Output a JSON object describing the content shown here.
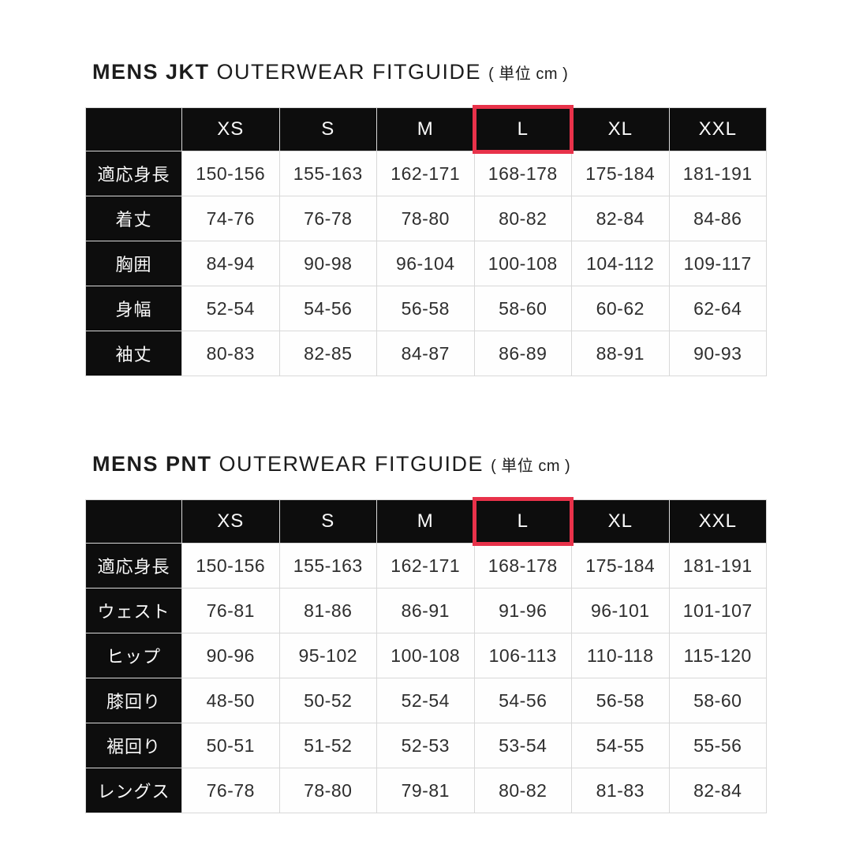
{
  "colors": {
    "highlight_red": "#e8324a",
    "header_black": "#0d0d0d",
    "cell_border_gray": "#d8d8d8",
    "value_text": "#2e2e2e"
  },
  "highlighted_size": "L",
  "tables": [
    {
      "title_bold": "MENS JKT",
      "title_main": "OUTERWEAR FITGUIDE",
      "title_unit": "( 単位 cm )",
      "sizes": [
        "XS",
        "S",
        "M",
        "L",
        "XL",
        "XXL"
      ],
      "rows": [
        {
          "label": "適応身長",
          "values": [
            "150-156",
            "155-163",
            "162-171",
            "168-178",
            "175-184",
            "181-191"
          ]
        },
        {
          "label": "着丈",
          "values": [
            "74-76",
            "76-78",
            "78-80",
            "80-82",
            "82-84",
            "84-86"
          ]
        },
        {
          "label": "胸囲",
          "values": [
            "84-94",
            "90-98",
            "96-104",
            "100-108",
            "104-112",
            "109-117"
          ]
        },
        {
          "label": "身幅",
          "values": [
            "52-54",
            "54-56",
            "56-58",
            "58-60",
            "60-62",
            "62-64"
          ]
        },
        {
          "label": "袖丈",
          "values": [
            "80-83",
            "82-85",
            "84-87",
            "86-89",
            "88-91",
            "90-93"
          ]
        }
      ]
    },
    {
      "title_bold": "MENS PNT",
      "title_main": "OUTERWEAR FITGUIDE",
      "title_unit": "( 単位 cm )",
      "sizes": [
        "XS",
        "S",
        "M",
        "L",
        "XL",
        "XXL"
      ],
      "rows": [
        {
          "label": "適応身長",
          "values": [
            "150-156",
            "155-163",
            "162-171",
            "168-178",
            "175-184",
            "181-191"
          ]
        },
        {
          "label": "ウェスト",
          "values": [
            "76-81",
            "81-86",
            "86-91",
            "91-96",
            "96-101",
            "101-107"
          ]
        },
        {
          "label": "ヒップ",
          "values": [
            "90-96",
            "95-102",
            "100-108",
            "106-113",
            "110-118",
            "115-120"
          ]
        },
        {
          "label": "膝回り",
          "values": [
            "48-50",
            "50-52",
            "52-54",
            "54-56",
            "56-58",
            "58-60"
          ]
        },
        {
          "label": "裾回り",
          "values": [
            "50-51",
            "51-52",
            "52-53",
            "53-54",
            "54-55",
            "55-56"
          ]
        },
        {
          "label": "レングス",
          "values": [
            "76-78",
            "78-80",
            "79-81",
            "80-82",
            "81-83",
            "82-84"
          ]
        }
      ]
    }
  ]
}
